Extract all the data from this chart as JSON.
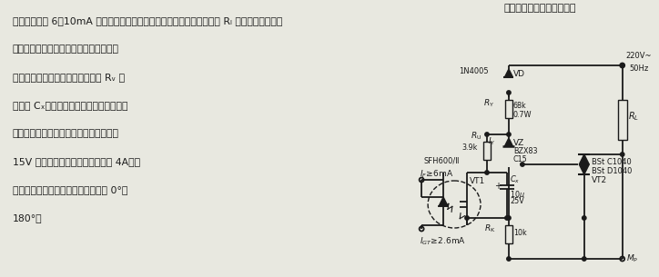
{
  "bg_color": "#e8e8e0",
  "text_color": "#1a1a1a",
  "circuit_color": "#1a1a1a",
  "title_right": "电路中如果光电耦合器发光",
  "text_line1": "二极管内流过 6～10mA 电流，则光敏二极管导通，使晶闸管导通，负载 Rₗ 上有电流通过；反",
  "text_line2": "之则无电流流过负载。电路中二极管用于",
  "text_line3": "给光敏二极管提供直流电源，电阵 Rᵥ 串",
  "text_line4": "联电容 Cₓ，用于在电源负半周时储存控制",
  "text_line5": "能量。稳压管用于使光敏二极管有稳定的",
  "text_line6": "15V 电压。该电路最大开关电流为 4A（纯",
  "text_line7": "电阵负载时），晶闸管移相角范围为 0°～",
  "text_line8": "180°。"
}
